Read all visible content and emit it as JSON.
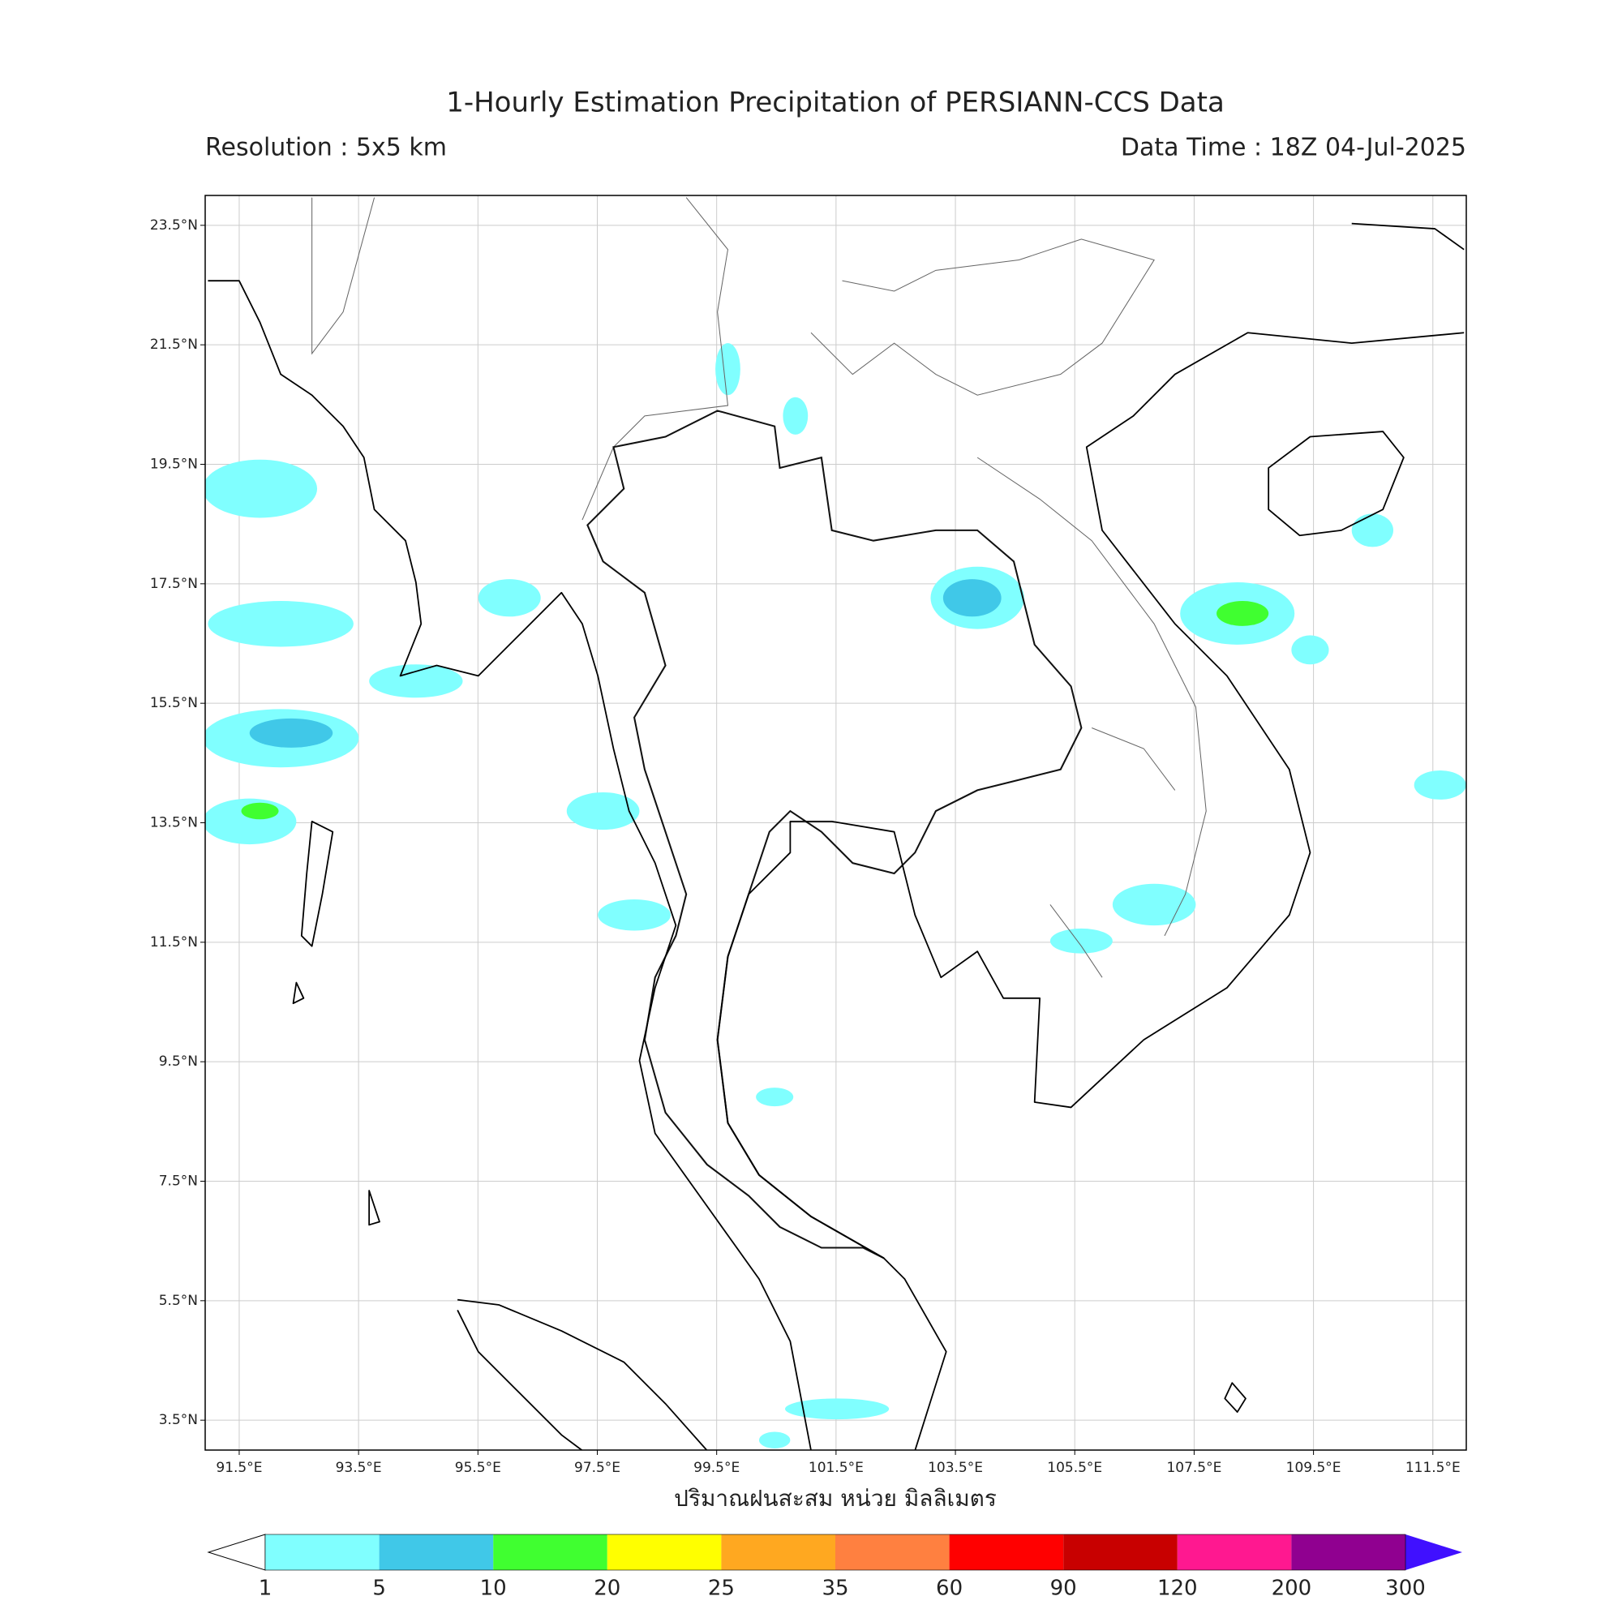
{
  "header": {
    "title": "1-Hourly Estimation Precipitation of PERSIANN-CCS Data",
    "resolution": "Resolution : 5x5 km",
    "data_time": "Data Time : 18Z 04-Jul-2025"
  },
  "map": {
    "xlim": [
      90.93,
      112.06
    ],
    "ylim": [
      3.0,
      24.0
    ],
    "grid": true,
    "xticks": [
      {
        "value": 91.5,
        "label": "91.5°E"
      },
      {
        "value": 93.5,
        "label": "93.5°E"
      },
      {
        "value": 95.5,
        "label": "95.5°E"
      },
      {
        "value": 97.5,
        "label": "97.5°E"
      },
      {
        "value": 99.5,
        "label": "99.5°E"
      },
      {
        "value": 101.5,
        "label": "101.5°E"
      },
      {
        "value": 103.5,
        "label": "103.5°E"
      },
      {
        "value": 105.5,
        "label": "105.5°E"
      },
      {
        "value": 107.5,
        "label": "107.5°E"
      },
      {
        "value": 109.5,
        "label": "109.5°E"
      },
      {
        "value": 111.5,
        "label": "111.5°E"
      }
    ],
    "yticks": [
      {
        "value": 3.5,
        "label": "3.5°N"
      },
      {
        "value": 5.5,
        "label": "5.5°N"
      },
      {
        "value": 7.5,
        "label": "7.5°N"
      },
      {
        "value": 9.5,
        "label": "9.5°N"
      },
      {
        "value": 11.5,
        "label": "11.5°N"
      },
      {
        "value": 13.5,
        "label": "13.5°N"
      },
      {
        "value": 15.5,
        "label": "15.5°N"
      },
      {
        "value": 17.5,
        "label": "17.5°N"
      },
      {
        "value": 19.5,
        "label": "19.5°N"
      },
      {
        "value": 21.5,
        "label": "21.5°N"
      },
      {
        "value": 23.5,
        "label": "23.5°N"
      }
    ],
    "x_label": "ปริมาณฝนสะสม หน่วย มิลลิเมตร"
  },
  "colorbar": {
    "extend": "both",
    "levels": [
      1,
      5,
      10,
      20,
      25,
      35,
      60,
      90,
      120,
      200,
      300
    ],
    "colors": [
      "#ffffff",
      "#80ffff",
      "#40c8e8",
      "#40ff30",
      "#ffff00",
      "#ffa820",
      "#ff8040",
      "#ff0000",
      "#c80000",
      "#ff1890",
      "#900090",
      "#4010ff"
    ]
  }
}
